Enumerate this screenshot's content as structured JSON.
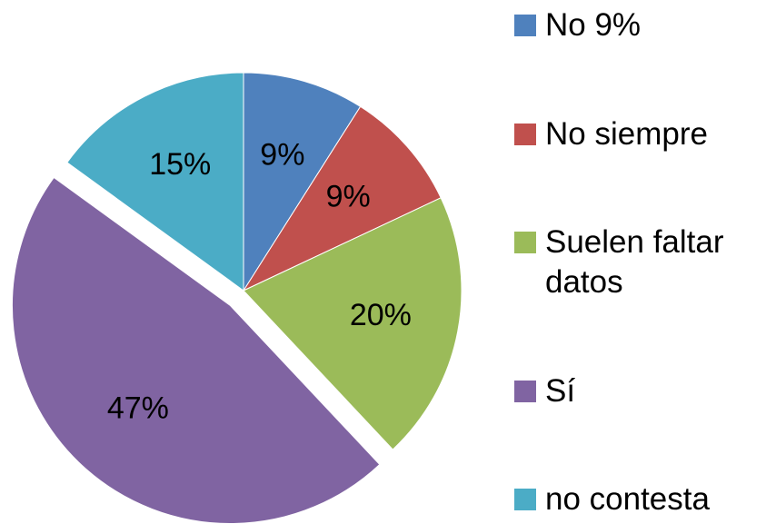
{
  "chart_data": {
    "type": "pie",
    "categories": [
      "No 9%",
      "No siempre",
      "Suelen faltar datos",
      "Sí",
      "no contesta"
    ],
    "values": [
      9,
      9,
      20,
      47,
      15
    ],
    "value_labels": [
      "9%",
      "9%",
      "20%",
      "47%",
      "15%"
    ],
    "colors": [
      "#4f81bd",
      "#c0504d",
      "#9bbb59",
      "#8064a2",
      "#4bacc6"
    ],
    "exploded": [
      false,
      false,
      false,
      true,
      false
    ],
    "legend": "right"
  }
}
